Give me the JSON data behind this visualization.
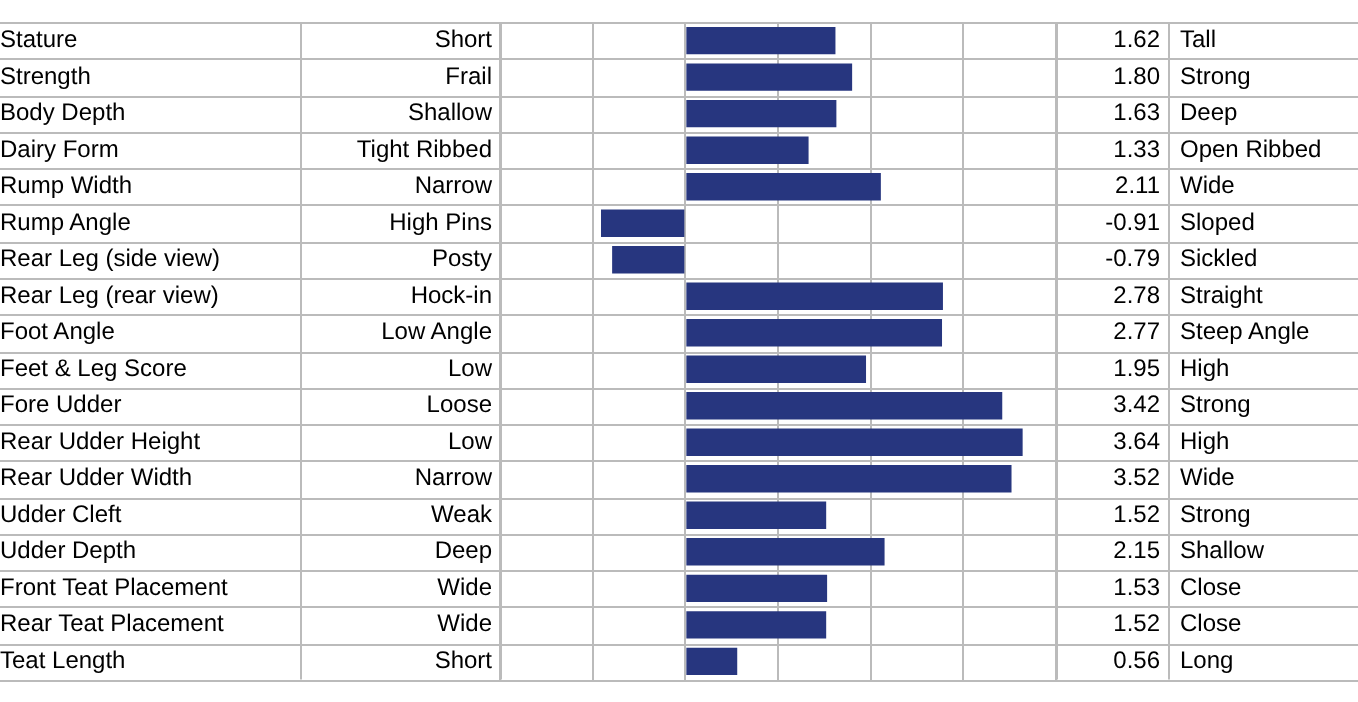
{
  "chart_data": {
    "type": "bar",
    "orientation": "horizontal",
    "categories": [
      "Stature",
      "Strength",
      "Body Depth",
      "Dairy Form",
      "Rump Width",
      "Rump Angle",
      "Rear Leg (side view)",
      "Rear Leg (rear view)",
      "Foot Angle",
      "Feet & Leg Score",
      "Fore Udder",
      "Rear Udder Height",
      "Rear Udder Width",
      "Udder Cleft",
      "Udder Depth",
      "Front Teat Placement",
      "Rear Teat Placement",
      "Teat Length"
    ],
    "values": [
      1.62,
      1.8,
      1.63,
      1.33,
      2.11,
      -0.91,
      -0.79,
      2.78,
      2.77,
      1.95,
      3.42,
      3.64,
      3.52,
      1.52,
      2.15,
      1.53,
      1.52,
      0.56
    ],
    "value_labels": [
      "1.62",
      "1.80",
      "1.63",
      "1.33",
      "2.11",
      "-0.91",
      "-0.79",
      "2.78",
      "2.77",
      "1.95",
      "3.42",
      "3.64",
      "3.52",
      "1.52",
      "2.15",
      "1.53",
      "1.52",
      "0.56"
    ],
    "color": "#27367f",
    "grid": true,
    "annotations": [
      "Short",
      "Tall",
      "Frail",
      "Strong",
      "Shallow",
      "Deep",
      "Tight Ribbed",
      "Open Ribbed",
      "Narrow",
      "Wide",
      "High Pins",
      "Sloped",
      "Posty",
      "Sickled",
      "Hock-in",
      "Straight",
      "Low Angle",
      "Steep Angle",
      "Low",
      "High",
      "Loose",
      "Strong",
      "Low",
      "High",
      "Narrow",
      "Wide",
      "Weak",
      "Strong",
      "Deep",
      "Shallow",
      "Wide",
      "Close",
      "Wide",
      "Close",
      "Short",
      "Long"
    ]
  }
}
